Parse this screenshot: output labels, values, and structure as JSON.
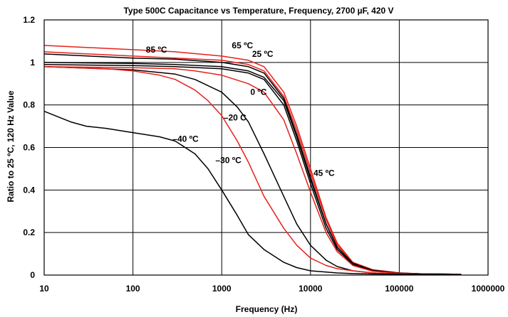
{
  "chart_data": {
    "type": "line",
    "title": "Type 500C Capacitance vs Temperature, Frequency,  2700 µF, 420 V",
    "xlabel": "Frequency (Hz)",
    "ylabel": "Ratio to 25 ºC, 120 Hz Value",
    "xscale": "log",
    "xlim": [
      10,
      1000000
    ],
    "ylim": [
      0,
      1.2
    ],
    "xticks": [
      "10",
      "100",
      "1000",
      "10000",
      "100000",
      "1000000"
    ],
    "yticks": [
      "0",
      "0.2",
      "0.4",
      "0.6",
      "0.8",
      "1",
      "1.2"
    ],
    "grid": true,
    "legend": "none",
    "annotations": [
      {
        "text": "85 ºC",
        "x": 140,
        "y": 1.06
      },
      {
        "text": "65 ºC",
        "x": 1300,
        "y": 1.08
      },
      {
        "text": "25 ºC",
        "x": 2200,
        "y": 1.04
      },
      {
        "text": "0 ºC",
        "x": 2100,
        "y": 0.86
      },
      {
        "text": "–20  C",
        "x": 1050,
        "y": 0.74
      },
      {
        "text": "–40 ºC",
        "x": 280,
        "y": 0.64
      },
      {
        "text": "–30 ºC",
        "x": 850,
        "y": 0.54
      },
      {
        "text": "45 ºC",
        "x": 10800,
        "y": 0.48
      }
    ],
    "series": [
      {
        "color": "#e8201a",
        "x": [
          10,
          100,
          300,
          1000,
          2000,
          3000,
          5000,
          7000,
          10000,
          15000,
          20000,
          30000,
          50000,
          100000,
          200000,
          500000
        ],
        "y": [
          1.08,
          1.06,
          1.05,
          1.03,
          1.01,
          0.98,
          0.86,
          0.7,
          0.5,
          0.27,
          0.15,
          0.06,
          0.025,
          0.01,
          0.005,
          0.004
        ]
      },
      {
        "color": "#e8201a",
        "x": [
          10,
          100,
          300,
          1000,
          2000,
          3000,
          5000,
          7000,
          10000,
          15000,
          20000,
          30000,
          50000,
          100000,
          200000,
          500000
        ],
        "y": [
          1.05,
          1.03,
          1.02,
          1.01,
          0.99,
          0.96,
          0.84,
          0.68,
          0.48,
          0.26,
          0.14,
          0.06,
          0.025,
          0.01,
          0.005,
          0.004
        ]
      },
      {
        "color": "#000000",
        "x": [
          10,
          100,
          300,
          1000,
          2000,
          3000,
          5000,
          7000,
          10000,
          15000,
          20000,
          30000,
          50000,
          100000,
          200000,
          500000
        ],
        "y": [
          1.04,
          1.02,
          1.015,
          1.0,
          0.98,
          0.95,
          0.83,
          0.66,
          0.46,
          0.24,
          0.13,
          0.055,
          0.022,
          0.009,
          0.005,
          0.004
        ]
      },
      {
        "color": "#000000",
        "x": [
          10,
          100,
          300,
          1000,
          2000,
          3000,
          5000,
          7000,
          10000,
          15000,
          20000,
          30000,
          50000,
          100000,
          200000,
          500000
        ],
        "y": [
          1.0,
          0.995,
          0.99,
          0.98,
          0.96,
          0.93,
          0.82,
          0.65,
          0.45,
          0.24,
          0.13,
          0.055,
          0.022,
          0.009,
          0.005,
          0.004
        ]
      },
      {
        "color": "#000000",
        "x": [
          10,
          100,
          300,
          1000,
          2000,
          3000,
          5000,
          7000,
          10000,
          15000,
          20000,
          30000,
          50000,
          100000,
          200000,
          500000
        ],
        "y": [
          0.99,
          0.985,
          0.98,
          0.97,
          0.95,
          0.92,
          0.8,
          0.63,
          0.43,
          0.22,
          0.12,
          0.05,
          0.02,
          0.008,
          0.005,
          0.004
        ]
      },
      {
        "color": "#e8201a",
        "x": [
          10,
          100,
          300,
          500,
          1000,
          2000,
          3000,
          5000,
          7000,
          10000,
          15000,
          20000,
          30000,
          50000,
          100000,
          200000,
          500000
        ],
        "y": [
          0.98,
          0.975,
          0.97,
          0.96,
          0.94,
          0.9,
          0.86,
          0.73,
          0.57,
          0.39,
          0.2,
          0.11,
          0.045,
          0.018,
          0.008,
          0.005,
          0.004
        ]
      },
      {
        "color": "#000000",
        "x": [
          10,
          100,
          300,
          500,
          1000,
          1500,
          2000,
          3000,
          5000,
          7000,
          10000,
          15000,
          20000,
          30000,
          50000,
          100000,
          500000
        ],
        "y": [
          0.98,
          0.965,
          0.945,
          0.92,
          0.86,
          0.79,
          0.72,
          0.57,
          0.37,
          0.24,
          0.14,
          0.07,
          0.04,
          0.02,
          0.01,
          0.005,
          0.004
        ]
      },
      {
        "color": "#e8201a",
        "x": [
          10,
          50,
          100,
          200,
          300,
          500,
          700,
          1000,
          1500,
          2000,
          3000,
          5000,
          7000,
          10000,
          15000,
          20000,
          30000,
          50000,
          100000,
          500000
        ],
        "y": [
          0.98,
          0.97,
          0.96,
          0.94,
          0.92,
          0.87,
          0.82,
          0.75,
          0.63,
          0.53,
          0.37,
          0.22,
          0.14,
          0.08,
          0.045,
          0.03,
          0.02,
          0.01,
          0.005,
          0.004
        ]
      },
      {
        "color": "#000000",
        "x": [
          10,
          20,
          30,
          50,
          100,
          200,
          300,
          500,
          700,
          1000,
          1500,
          2000,
          3000,
          5000,
          7000,
          10000,
          20000,
          30000,
          50000,
          100000,
          500000
        ],
        "y": [
          0.77,
          0.72,
          0.7,
          0.69,
          0.67,
          0.65,
          0.63,
          0.57,
          0.5,
          0.4,
          0.28,
          0.19,
          0.12,
          0.06,
          0.035,
          0.02,
          0.01,
          0.007,
          0.005,
          0.004,
          0.003
        ]
      }
    ]
  }
}
